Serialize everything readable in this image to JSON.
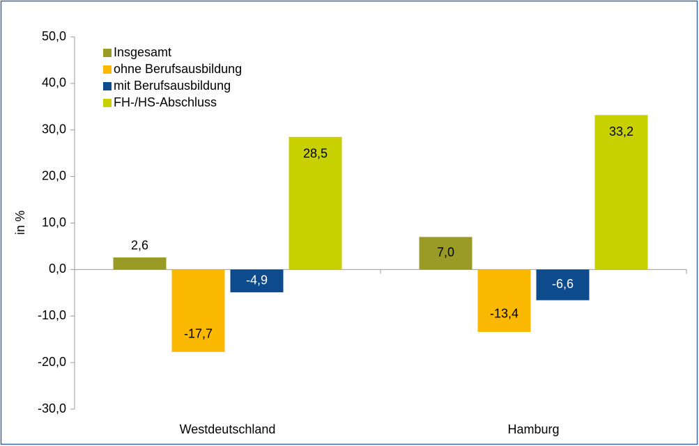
{
  "chart_data": {
    "type": "bar",
    "ylabel": "in %",
    "categories": [
      "Westdeutschland",
      "Hamburg"
    ],
    "series": [
      {
        "name": "Insgesamt",
        "color": "#999b26",
        "values": [
          2.6,
          7.0
        ],
        "value_labels": [
          "2,6",
          "7,0"
        ]
      },
      {
        "name": "ohne Berufsausbildung",
        "color": "#fab800",
        "values": [
          -17.7,
          -13.4
        ],
        "value_labels": [
          "-17,7",
          "-13,4"
        ]
      },
      {
        "name": "mit Berufsausbildung",
        "color": "#0e4b8c",
        "values": [
          -4.9,
          -6.6
        ],
        "value_labels": [
          "-4,9",
          "-6,6"
        ]
      },
      {
        "name": "FH-/HS-Abschluss",
        "color": "#c8d000",
        "values": [
          28.5,
          33.2
        ],
        "value_labels": [
          "28,5",
          "33,2"
        ]
      }
    ],
    "ylim": [
      -30,
      50
    ],
    "yticks": [
      {
        "value": -30,
        "label": "-30,0"
      },
      {
        "value": -20,
        "label": "-20,0"
      },
      {
        "value": -10,
        "label": "-10,0"
      },
      {
        "value": 0,
        "label": "0,0"
      },
      {
        "value": 10,
        "label": "10,0"
      },
      {
        "value": 20,
        "label": "20,0"
      },
      {
        "value": 30,
        "label": "30,0"
      },
      {
        "value": 40,
        "label": "40,0"
      },
      {
        "value": 50,
        "label": "50,0"
      }
    ],
    "grid": false,
    "legend": "upper left"
  }
}
